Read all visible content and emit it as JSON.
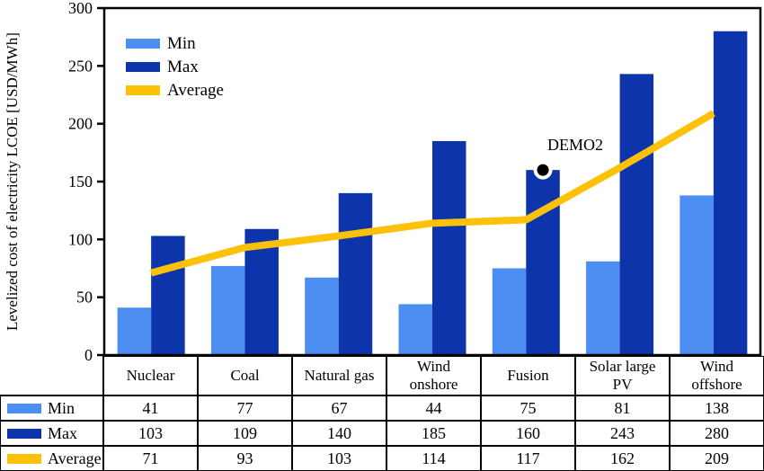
{
  "figure": {
    "y_axis_label": "Levelized cost of electricity LCOE [USD/MWh]"
  },
  "chart_data": {
    "type": "bar",
    "title": "",
    "categories": [
      "Nuclear",
      "Coal",
      "Natural gas",
      "Wind onshore",
      "Fusion",
      "Solar large PV",
      "Wind offshore"
    ],
    "category_labels": [
      "Nuclear",
      "Coal",
      "Natural gas",
      "Wind\nonshore",
      "Fusion",
      "Solar large\nPV",
      "Wind\noffshore"
    ],
    "series": [
      {
        "name": "Min",
        "type": "bar",
        "color": "#4D8EF2",
        "values": [
          41,
          77,
          67,
          44,
          75,
          81,
          138
        ]
      },
      {
        "name": "Max",
        "type": "bar",
        "color": "#0D34AA",
        "values": [
          103,
          109,
          140,
          185,
          160,
          243,
          280
        ]
      },
      {
        "name": "Average",
        "type": "line",
        "color": "#FDC109",
        "values": [
          71,
          93,
          103,
          114,
          117,
          162,
          209
        ]
      }
    ],
    "xlabel": "",
    "ylabel": "Levelized cost of electricity LCOE [USD/MWh]",
    "ylim": [
      0,
      300
    ],
    "yticks": [
      0,
      50,
      100,
      150,
      200,
      250,
      300
    ],
    "grid": false,
    "legend_position": "top-left",
    "annotations": [
      {
        "text": "DEMO2",
        "category": "Fusion",
        "series": "Max",
        "value": 160
      }
    ]
  },
  "colors": {
    "axis": "#000000",
    "background": "#ffffff",
    "annotation_dot": "#000000"
  }
}
